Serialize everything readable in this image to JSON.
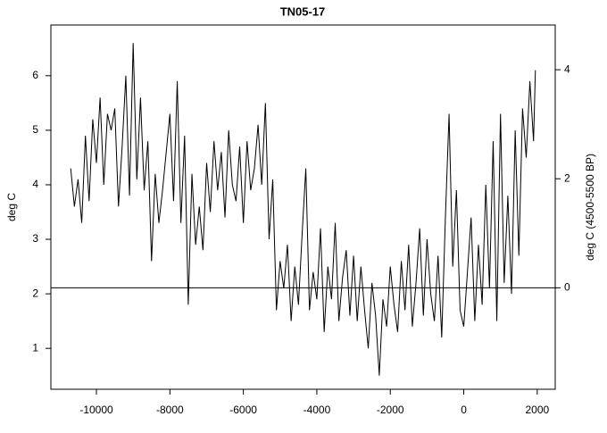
{
  "chart_data": {
    "type": "line",
    "title": "TN05-17",
    "ylabel": "deg C",
    "y2label": "deg C (4500-5500 BP)",
    "x": [
      -10700,
      -10600,
      -10500,
      -10400,
      -10300,
      -10200,
      -10100,
      -10000,
      -9900,
      -9800,
      -9700,
      -9600,
      -9500,
      -9400,
      -9300,
      -9200,
      -9100,
      -9000,
      -8900,
      -8800,
      -8700,
      -8600,
      -8500,
      -8400,
      -8300,
      -8200,
      -8100,
      -8000,
      -7900,
      -7800,
      -7700,
      -7600,
      -7500,
      -7400,
      -7300,
      -7200,
      -7100,
      -7000,
      -6900,
      -6800,
      -6700,
      -6600,
      -6500,
      -6400,
      -6300,
      -6200,
      -6100,
      -6000,
      -5900,
      -5800,
      -5700,
      -5600,
      -5500,
      -5400,
      -5300,
      -5200,
      -5100,
      -5000,
      -4900,
      -4800,
      -4700,
      -4600,
      -4500,
      -4400,
      -4300,
      -4200,
      -4100,
      -4000,
      -3900,
      -3800,
      -3700,
      -3600,
      -3500,
      -3400,
      -3300,
      -3200,
      -3100,
      -3000,
      -2900,
      -2800,
      -2700,
      -2600,
      -2500,
      -2400,
      -2300,
      -2200,
      -2100,
      -2000,
      -1900,
      -1800,
      -1700,
      -1600,
      -1500,
      -1400,
      -1300,
      -1200,
      -1100,
      -1000,
      -900,
      -800,
      -700,
      -600,
      -500,
      -400,
      -300,
      -200,
      -100,
      0,
      100,
      200,
      300,
      400,
      500,
      600,
      700,
      800,
      900,
      1000,
      1100,
      1200,
      1300,
      1400,
      1500,
      1600,
      1700,
      1800,
      1900,
      1950
    ],
    "series": [
      {
        "color": "#000000",
        "values": [
          4.3,
          3.6,
          4.1,
          3.3,
          4.9,
          3.7,
          5.2,
          4.4,
          5.6,
          4.0,
          5.3,
          5.0,
          5.4,
          3.6,
          4.7,
          6.0,
          3.8,
          6.6,
          4.1,
          5.6,
          3.9,
          4.8,
          2.6,
          4.2,
          3.3,
          3.9,
          4.6,
          5.3,
          3.7,
          5.9,
          3.3,
          4.9,
          1.8,
          4.2,
          2.9,
          3.6,
          2.8,
          4.4,
          3.5,
          4.8,
          3.9,
          4.6,
          3.4,
          5.0,
          4.0,
          3.7,
          4.7,
          3.3,
          4.8,
          3.9,
          4.3,
          5.1,
          4.0,
          5.5,
          3.0,
          4.1,
          1.7,
          2.6,
          2.1,
          2.9,
          1.5,
          2.5,
          1.8,
          3.1,
          4.3,
          1.7,
          2.4,
          1.9,
          3.2,
          1.3,
          2.5,
          1.9,
          3.3,
          1.5,
          2.3,
          2.8,
          1.6,
          2.7,
          1.5,
          2.5,
          1.7,
          1.0,
          2.2,
          1.6,
          0.5,
          1.9,
          1.4,
          2.5,
          1.8,
          1.3,
          2.6,
          1.7,
          2.9,
          1.4,
          2.2,
          3.2,
          1.6,
          3.0,
          2.0,
          1.5,
          2.7,
          1.2,
          3.4,
          5.3,
          2.5,
          3.9,
          1.7,
          1.4,
          2.4,
          3.4,
          1.5,
          2.9,
          1.8,
          4.0,
          2.1,
          4.8,
          1.5,
          5.3,
          2.2,
          3.8,
          2.0,
          5.0,
          2.7,
          5.4,
          4.5,
          5.9,
          4.8,
          6.1
        ]
      }
    ],
    "xlim": [
      -11240,
      2490
    ],
    "xticks": [
      -10000,
      -8000,
      -6000,
      -4000,
      -2000,
      0,
      2000
    ],
    "ylim": [
      0.25,
      6.93
    ],
    "yticks": [
      1,
      2,
      3,
      4,
      5,
      6
    ],
    "y2lim": [
      -1.86,
      4.82
    ],
    "y2ticks": [
      0,
      2,
      4
    ],
    "reference_line": {
      "axis": "y2",
      "value": 0
    }
  }
}
